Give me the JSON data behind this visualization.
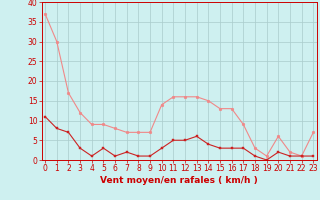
{
  "x": [
    0,
    1,
    2,
    3,
    4,
    5,
    6,
    7,
    8,
    9,
    10,
    11,
    12,
    13,
    14,
    15,
    16,
    17,
    18,
    19,
    20,
    21,
    22,
    23
  ],
  "y_rafales": [
    37,
    30,
    17,
    12,
    9,
    9,
    8,
    7,
    7,
    7,
    14,
    16,
    16,
    16,
    15,
    13,
    13,
    9,
    3,
    1,
    6,
    2,
    1,
    7
  ],
  "y_moyen": [
    11,
    8,
    7,
    3,
    1,
    3,
    1,
    2,
    1,
    1,
    3,
    5,
    5,
    6,
    4,
    3,
    3,
    3,
    1,
    0,
    2,
    1,
    1,
    1
  ],
  "bg_color": "#cef0f0",
  "grid_color": "#aacccc",
  "line_color_rafales": "#f08888",
  "line_color_moyen": "#cc2222",
  "xlabel": "Vent moyen/en rafales ( km/h )",
  "xlabel_color": "#cc0000",
  "ylim": [
    0,
    40
  ],
  "xlim": [
    -0.3,
    23.3
  ],
  "yticks": [
    0,
    5,
    10,
    15,
    20,
    25,
    30,
    35,
    40
  ],
  "xticks": [
    0,
    1,
    2,
    3,
    4,
    5,
    6,
    7,
    8,
    9,
    10,
    11,
    12,
    13,
    14,
    15,
    16,
    17,
    18,
    19,
    20,
    21,
    22,
    23
  ],
  "tick_color": "#cc0000",
  "spine_color": "#cc0000",
  "axis_fontsize": 6.5,
  "tick_fontsize": 5.5
}
